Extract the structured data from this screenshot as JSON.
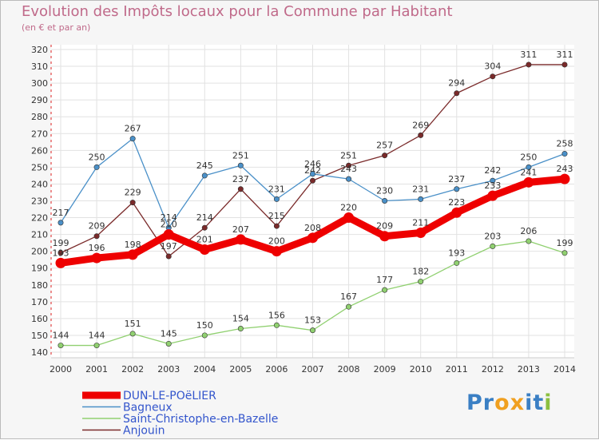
{
  "header": {
    "title": "Evolution des Impôts locaux pour la Commune par Habitant",
    "subtitle": "(en € et par an)"
  },
  "logo": {
    "text": "Proxiti",
    "letters": [
      {
        "ch": "P",
        "color": "#3a7fc4"
      },
      {
        "ch": "r",
        "color": "#3a7fc4"
      },
      {
        "ch": "o",
        "color": "#f0a020"
      },
      {
        "ch": "x",
        "color": "#f0a020"
      },
      {
        "ch": "i",
        "color": "#3a7fc4"
      },
      {
        "ch": "t",
        "color": "#3a7fc4"
      },
      {
        "ch": "i",
        "color": "#8cc040"
      }
    ]
  },
  "chart_data": {
    "type": "line",
    "x": [
      2000,
      2001,
      2002,
      2003,
      2004,
      2005,
      2006,
      2007,
      2008,
      2009,
      2010,
      2011,
      2012,
      2013,
      2014
    ],
    "ylim": [
      140,
      320
    ],
    "yticks": [
      140,
      150,
      160,
      170,
      180,
      190,
      200,
      210,
      220,
      230,
      240,
      250,
      260,
      270,
      280,
      290,
      300,
      310,
      320
    ],
    "grid": true,
    "legend_position": "bottom-left",
    "series": [
      {
        "name": "Anjouin",
        "color": "#7a2a2a",
        "values": [
          199,
          209,
          229,
          197,
          214,
          237,
          215,
          242,
          251,
          257,
          269,
          294,
          304,
          311,
          311
        ]
      },
      {
        "name": "Bagneux",
        "color": "#4a90c8",
        "values": [
          217,
          250,
          267,
          214,
          245,
          251,
          231,
          246,
          243,
          230,
          231,
          237,
          242,
          250,
          258
        ]
      },
      {
        "name": "Saint-Christophe-en-Bazelle",
        "color": "#90d070",
        "values": [
          144,
          144,
          151,
          145,
          150,
          154,
          156,
          153,
          167,
          177,
          182,
          193,
          203,
          206,
          199
        ]
      },
      {
        "name": "DUN-LE-POëLIER",
        "color": "#ee0000",
        "values": [
          193,
          196,
          198,
          210,
          201,
          207,
          200,
          208,
          220,
          209,
          211,
          223,
          233,
          241,
          243
        ]
      }
    ],
    "legend": [
      "DUN-LE-POëLIER",
      "Bagneux",
      "Saint-Christophe-en-Bazelle",
      "Anjouin"
    ]
  }
}
